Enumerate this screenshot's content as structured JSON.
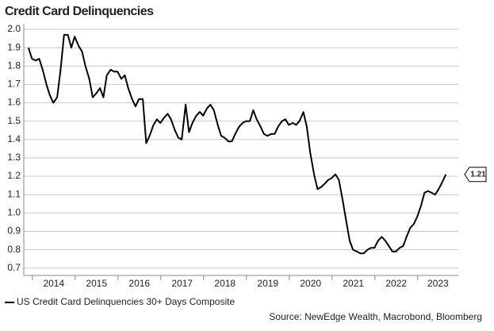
{
  "chart_data": {
    "type": "line",
    "title": "Credit Card Delinquencies",
    "source": "Source: NewEdge Wealth, Macrobond, Bloomberg",
    "xlim": [
      2013.8,
      2023.95
    ],
    "xticks": [
      2014,
      2015,
      2016,
      2017,
      2018,
      2019,
      2020,
      2021,
      2022,
      2023
    ],
    "ylim": [
      0.66,
      2.03
    ],
    "yticks": [
      {
        "value": 2,
        "label": "2.0"
      },
      1.9,
      1.8,
      1.7,
      1.6,
      1.5,
      1.4,
      1.3,
      1.2,
      1.1,
      {
        "value": 1,
        "label": "1.0"
      },
      0.9,
      0.8,
      0.7
    ],
    "grid": true,
    "legend": "bottom-left",
    "x": [
      2013.91,
      2013.99,
      2014.08,
      2014.16,
      2014.24,
      2014.33,
      2014.41,
      2014.49,
      2014.58,
      2014.66,
      2014.74,
      2014.83,
      2014.91,
      2014.99,
      2015.08,
      2015.16,
      2015.24,
      2015.33,
      2015.41,
      2015.49,
      2015.58,
      2015.66,
      2015.74,
      2015.83,
      2015.91,
      2015.99,
      2016.08,
      2016.16,
      2016.24,
      2016.33,
      2016.41,
      2016.49,
      2016.58,
      2016.66,
      2016.74,
      2016.83,
      2016.91,
      2016.99,
      2017.08,
      2017.16,
      2017.24,
      2017.33,
      2017.41,
      2017.49,
      2017.58,
      2017.66,
      2017.74,
      2017.83,
      2017.91,
      2017.99,
      2018.08,
      2018.16,
      2018.24,
      2018.33,
      2018.41,
      2018.49,
      2018.58,
      2018.66,
      2018.74,
      2018.83,
      2018.91,
      2018.99,
      2019.08,
      2019.16,
      2019.24,
      2019.33,
      2019.41,
      2019.49,
      2019.58,
      2019.66,
      2019.74,
      2019.83,
      2019.91,
      2019.99,
      2020.08,
      2020.16,
      2020.24,
      2020.33,
      2020.41,
      2020.49,
      2020.58,
      2020.66,
      2020.74,
      2020.83,
      2020.91,
      2020.99,
      2021.08,
      2021.16,
      2021.24,
      2021.33,
      2021.41,
      2021.49,
      2021.58,
      2021.66,
      2021.74,
      2021.83,
      2021.91,
      2021.99,
      2022.08,
      2022.16,
      2022.24,
      2022.33,
      2022.41,
      2022.49,
      2022.58,
      2022.66,
      2022.74,
      2022.83,
      2022.91,
      2022.99,
      2023.08,
      2023.16,
      2023.24,
      2023.33,
      2023.41,
      2023.49,
      2023.58,
      2023.66
    ],
    "series": [
      {
        "name": "US Credit Card Delinquencies 30+ Days Composite",
        "color": "#000000",
        "values": [
          1.9,
          1.84,
          1.83,
          1.84,
          1.78,
          1.7,
          1.64,
          1.6,
          1.63,
          1.78,
          1.97,
          1.97,
          1.9,
          1.96,
          1.91,
          1.88,
          1.8,
          1.73,
          1.63,
          1.65,
          1.68,
          1.63,
          1.75,
          1.78,
          1.77,
          1.77,
          1.73,
          1.75,
          1.68,
          1.62,
          1.58,
          1.62,
          1.62,
          1.38,
          1.42,
          1.48,
          1.51,
          1.49,
          1.52,
          1.54,
          1.51,
          1.45,
          1.41,
          1.4,
          1.59,
          1.44,
          1.49,
          1.53,
          1.55,
          1.53,
          1.57,
          1.59,
          1.56,
          1.48,
          1.42,
          1.41,
          1.39,
          1.39,
          1.43,
          1.47,
          1.49,
          1.5,
          1.5,
          1.56,
          1.51,
          1.47,
          1.43,
          1.42,
          1.43,
          1.43,
          1.47,
          1.5,
          1.51,
          1.48,
          1.49,
          1.48,
          1.5,
          1.55,
          1.47,
          1.33,
          1.21,
          1.13,
          1.14,
          1.16,
          1.18,
          1.19,
          1.21,
          1.18,
          1.08,
          0.96,
          0.85,
          0.8,
          0.79,
          0.78,
          0.78,
          0.8,
          0.81,
          0.81,
          0.85,
          0.87,
          0.85,
          0.82,
          0.79,
          0.79,
          0.81,
          0.82,
          0.87,
          0.92,
          0.94,
          0.98,
          1.04,
          1.11,
          1.12,
          1.11,
          1.1,
          1.13,
          1.17,
          1.21
        ]
      }
    ]
  }
}
